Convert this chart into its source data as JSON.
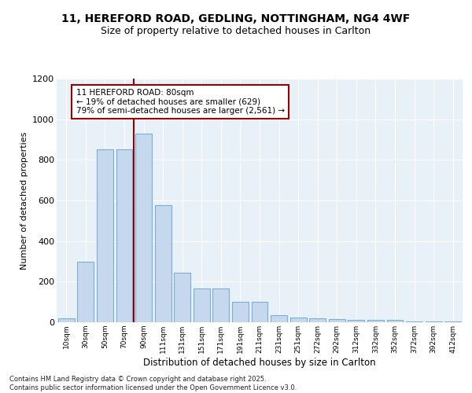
{
  "title1": "11, HEREFORD ROAD, GEDLING, NOTTINGHAM, NG4 4WF",
  "title2": "Size of property relative to detached houses in Carlton",
  "xlabel": "Distribution of detached houses by size in Carlton",
  "ylabel": "Number of detached properties",
  "categories": [
    "10sqm",
    "30sqm",
    "50sqm",
    "70sqm",
    "90sqm",
    "111sqm",
    "131sqm",
    "151sqm",
    "171sqm",
    "191sqm",
    "211sqm",
    "231sqm",
    "251sqm",
    "272sqm",
    "292sqm",
    "312sqm",
    "332sqm",
    "352sqm",
    "372sqm",
    "392sqm",
    "412sqm"
  ],
  "values": [
    20,
    300,
    850,
    850,
    930,
    575,
    245,
    165,
    165,
    100,
    100,
    35,
    25,
    20,
    15,
    10,
    10,
    10,
    5,
    5,
    5
  ],
  "bar_color": "#c5d8ee",
  "bar_edge_color": "#7bafd4",
  "vline_color": "#9b0000",
  "annotation_text": "11 HEREFORD ROAD: 80sqm\n← 19% of detached houses are smaller (629)\n79% of semi-detached houses are larger (2,561) →",
  "annotation_box_color": "#9b0000",
  "ylim": [
    0,
    1200
  ],
  "yticks": [
    0,
    200,
    400,
    600,
    800,
    1000,
    1200
  ],
  "background_color": "#e8f0f8",
  "footer": "Contains HM Land Registry data © Crown copyright and database right 2025.\nContains public sector information licensed under the Open Government Licence v3.0.",
  "title_fontsize": 10,
  "subtitle_fontsize": 9,
  "vline_index": 3.5
}
